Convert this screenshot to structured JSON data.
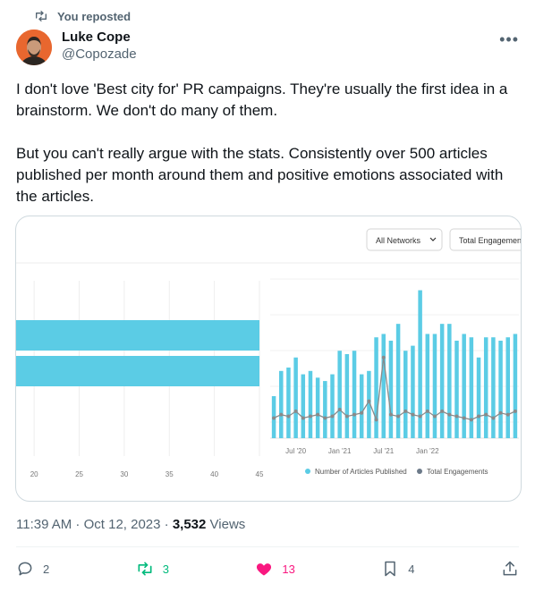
{
  "repost_label": "You reposted",
  "author": {
    "name": "Luke Cope",
    "handle": "@Copozade"
  },
  "tweet": {
    "text": "I don't love 'Best city for' PR campaigns. They're usually the first idea in a brainstorm. We don't do many of them.\n\nBut you can't really argue with the stats. Consistently over 500 articles published per month around them and positive emotions associated with the articles."
  },
  "media": {
    "dropdowns": {
      "networks": "All Networks",
      "metric": "Total Engagemen"
    },
    "left_chart": {
      "xticks": [
        "20",
        "25",
        "30",
        "35",
        "40",
        "45"
      ],
      "bars": [
        45,
        45
      ]
    },
    "right_chart": {
      "xticks": [
        "Jul '20",
        "Jan '21",
        "Jul '21",
        "Jan '22"
      ],
      "legend": [
        "Number of Articles Published",
        "Total Engagements"
      ]
    }
  },
  "chart_data": [
    {
      "type": "bar",
      "orientation": "horizontal",
      "xlim": [
        18,
        45
      ],
      "values": [
        45,
        45
      ],
      "title": "",
      "xlabel": "",
      "ylabel": ""
    },
    {
      "type": "bar",
      "xticks": [
        "Jul '20",
        "Jan '21",
        "Jul '21",
        "Jan '22"
      ],
      "series": [
        {
          "name": "Number of Articles Published",
          "values": [
            25,
            40,
            42,
            48,
            38,
            40,
            36,
            34,
            38,
            52,
            50,
            52,
            38,
            40,
            60,
            62,
            58,
            68,
            52,
            55,
            88,
            62,
            62,
            68,
            68,
            58,
            62,
            60,
            48,
            60,
            60,
            58,
            60,
            62
          ]
        },
        {
          "name": "Total Engagements",
          "values": [
            12,
            14,
            13,
            16,
            12,
            13,
            14,
            12,
            13,
            17,
            13,
            14,
            15,
            22,
            11,
            48,
            14,
            13,
            16,
            14,
            13,
            16,
            13,
            16,
            14,
            13,
            12,
            11,
            13,
            14,
            12,
            15,
            14,
            16
          ]
        }
      ],
      "colors": {
        "articles": "#5bcce5",
        "engagements": "#8a8a8a"
      }
    }
  ],
  "meta": {
    "time": "11:39 AM · Oct 12, 2023 · ",
    "views_count": "3,532",
    "views_label": " Views"
  },
  "actions": {
    "replies": "2",
    "reposts": "3",
    "likes": "13",
    "bookmarks": "4"
  }
}
